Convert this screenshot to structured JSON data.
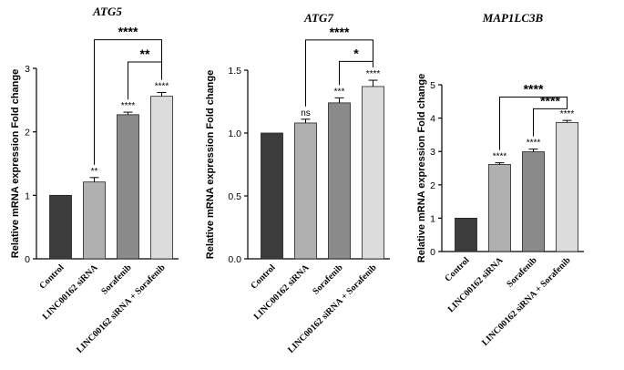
{
  "chart_data": [
    {
      "type": "bar",
      "title": "ATG5",
      "ylabel": "Relative mRNA expression Fold change",
      "ylim": [
        0,
        3
      ],
      "yticks": [
        "0",
        "1",
        "2",
        "3"
      ],
      "categories": [
        "Control",
        "LINC00162 siRNA",
        "Sorafenib",
        "LINC00162 siRNA + Sorafenib"
      ],
      "values": [
        1.0,
        1.21,
        2.27,
        2.56
      ],
      "errors": [
        0.0,
        0.07,
        0.04,
        0.06
      ],
      "colors": [
        "#3c3c3c",
        "#b0b0b0",
        "#8a8a8a",
        "#dcdcdc"
      ],
      "bar_labels": [
        "",
        "**",
        "****",
        "****"
      ],
      "comparisons": [
        {
          "from": 1,
          "to": 3,
          "label": "****",
          "y": 3.45
        },
        {
          "from": 2,
          "to": 3,
          "label": "**",
          "y": 3.1
        }
      ]
    },
    {
      "type": "bar",
      "title": "ATG7",
      "ylabel": "Relative mRNA expression Fold change",
      "ylim": [
        0,
        1.5
      ],
      "yticks": [
        "0.0",
        "0.5",
        "1.0",
        "1.5"
      ],
      "categories": [
        "Control",
        "LINC00162 siRNA",
        "Sorafenib",
        "LINC00162 siRNA + Sorafenib"
      ],
      "values": [
        1.0,
        1.08,
        1.24,
        1.37
      ],
      "errors": [
        0.0,
        0.03,
        0.04,
        0.05
      ],
      "colors": [
        "#3c3c3c",
        "#b0b0b0",
        "#8a8a8a",
        "#dcdcdc"
      ],
      "bar_labels": [
        "",
        "ns",
        "***",
        "****"
      ],
      "comparisons": [
        {
          "from": 1,
          "to": 3,
          "label": "****",
          "y": 1.74
        },
        {
          "from": 2,
          "to": 3,
          "label": "*",
          "y": 1.57
        }
      ]
    },
    {
      "type": "bar",
      "title": "MAP1LC3B",
      "ylabel": "Relative mRNA expression Fold change",
      "ylim": [
        0,
        5
      ],
      "yticks": [
        "0",
        "1",
        "2",
        "3",
        "4",
        "5"
      ],
      "categories": [
        "Control",
        "LINC00162 siRNA",
        "Sorafenib",
        "LINC00162 siRNA + Sorafenib"
      ],
      "values": [
        1.0,
        2.61,
        2.99,
        3.87
      ],
      "errors": [
        0.0,
        0.05,
        0.08,
        0.06
      ],
      "colors": [
        "#3c3c3c",
        "#b0b0b0",
        "#8a8a8a",
        "#dcdcdc"
      ],
      "bar_labels": [
        "",
        "****",
        "****",
        "****"
      ],
      "comparisons": [
        {
          "from": 1,
          "to": 3,
          "label": "****",
          "y": 4.63
        },
        {
          "from": 2,
          "to": 3,
          "label": "****",
          "y": 4.28
        }
      ]
    }
  ]
}
